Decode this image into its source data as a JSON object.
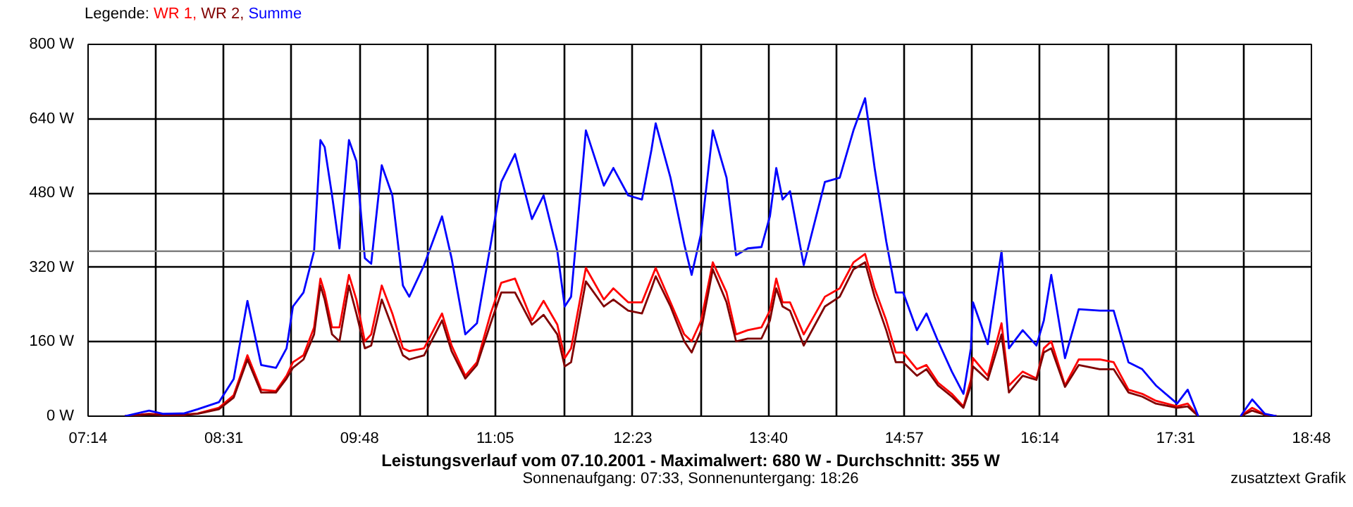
{
  "chart_data": {
    "type": "line",
    "title": "Leistungsverlauf vom 07.10.2001 - Maximalwert: 680 W - Durchschnitt: 355 W",
    "subtitle": "Sonnenaufgang: 07:33, Sonnenuntergang: 18:26",
    "legend_title": "Legende:",
    "annotations": [
      "zusatztext Grafik"
    ],
    "x": [
      7.58,
      7.81,
      7.94,
      8.14,
      8.27,
      8.47,
      8.61,
      8.74,
      8.87,
      9.01,
      9.11,
      9.17,
      9.27,
      9.37,
      9.43,
      9.47,
      9.54,
      9.61,
      9.7,
      9.77,
      9.85,
      9.91,
      10.01,
      10.11,
      10.21,
      10.27,
      10.41,
      10.58,
      10.67,
      10.8,
      10.91,
      11.04,
      11.14,
      11.27,
      11.43,
      11.54,
      11.67,
      11.74,
      11.8,
      11.94,
      12.11,
      12.2,
      12.34,
      12.47,
      12.56,
      12.6,
      12.74,
      12.87,
      12.94,
      13.03,
      13.14,
      13.27,
      13.36,
      13.47,
      13.6,
      13.68,
      13.74,
      13.8,
      13.87,
      14.0,
      14.2,
      14.34,
      14.47,
      14.58,
      14.67,
      14.78,
      14.87,
      14.94,
      15.07,
      15.16,
      15.27,
      15.4,
      15.51,
      15.58,
      15.6,
      15.74,
      15.87,
      15.94,
      16.07,
      16.2,
      16.27,
      16.34,
      16.47,
      16.6,
      16.8,
      16.93,
      17.07,
      17.2,
      17.33,
      17.53,
      17.63,
      17.73,
      17.93,
      18.13,
      18.24,
      18.36,
      18.47
    ],
    "series": [
      {
        "name": "WR 1,",
        "color": "#ff0000",
        "values": [
          0,
          5,
          3,
          3,
          6,
          18,
          45,
          131,
          57,
          54,
          87,
          116,
          131,
          191,
          296,
          266,
          191,
          191,
          304,
          251,
          161,
          176,
          281,
          221,
          146,
          140,
          146,
          221,
          152,
          87,
          116,
          221,
          287,
          296,
          206,
          248,
          197,
          125,
          146,
          319,
          251,
          275,
          245,
          245,
          296,
          319,
          245,
          176,
          161,
          206,
          331,
          266,
          176,
          185,
          191,
          227,
          296,
          245,
          245,
          176,
          257,
          275,
          331,
          349,
          275,
          206,
          137,
          137,
          101,
          110,
          72,
          48,
          21,
          78,
          125,
          87,
          200,
          66,
          96,
          81,
          146,
          161,
          66,
          122,
          122,
          116,
          57,
          48,
          33,
          21,
          27,
          0,
          null,
          0,
          18,
          3,
          0
        ]
      },
      {
        "name": "WR 2,",
        "color": "#800000",
        "values": [
          0,
          4,
          2,
          3,
          5,
          15,
          40,
          122,
          51,
          51,
          81,
          104,
          122,
          176,
          281,
          251,
          176,
          161,
          281,
          221,
          146,
          152,
          251,
          191,
          131,
          122,
          131,
          206,
          140,
          81,
          110,
          200,
          266,
          266,
          197,
          218,
          176,
          107,
          116,
          290,
          236,
          251,
          227,
          221,
          275,
          301,
          236,
          161,
          137,
          185,
          316,
          245,
          161,
          167,
          167,
          206,
          275,
          236,
          227,
          152,
          236,
          257,
          316,
          331,
          257,
          185,
          116,
          116,
          87,
          101,
          66,
          42,
          18,
          66,
          107,
          78,
          176,
          51,
          87,
          78,
          137,
          146,
          63,
          110,
          101,
          101,
          51,
          42,
          27,
          18,
          21,
          0,
          null,
          0,
          12,
          3,
          0
        ]
      },
      {
        "name": "Summe",
        "color": "#0000ff",
        "values": [
          0,
          12,
          5,
          6,
          15,
          30,
          80,
          248,
          110,
          104,
          146,
          236,
          266,
          355,
          594,
          579,
          475,
          361,
          594,
          549,
          340,
          328,
          540,
          475,
          281,
          257,
          325,
          430,
          340,
          176,
          200,
          370,
          504,
          564,
          424,
          475,
          355,
          236,
          257,
          615,
          496,
          534,
          475,
          466,
          573,
          630,
          513,
          370,
          304,
          394,
          615,
          513,
          346,
          361,
          364,
          430,
          534,
          466,
          484,
          325,
          504,
          513,
          615,
          684,
          534,
          376,
          266,
          266,
          185,
          221,
          161,
          96,
          48,
          146,
          245,
          155,
          355,
          146,
          185,
          152,
          206,
          304,
          125,
          230,
          227,
          227,
          116,
          101,
          66,
          27,
          57,
          0,
          null,
          0,
          36,
          5,
          0
        ]
      }
    ],
    "xlim": [
      7.2333,
      18.8
    ],
    "xticks": [
      {
        "value": 7.2333,
        "label": "07:14"
      },
      {
        "value": 7.875,
        "label": null
      },
      {
        "value": 8.5167,
        "label": "08:31"
      },
      {
        "value": 9.158,
        "label": null
      },
      {
        "value": 9.8,
        "label": "09:48"
      },
      {
        "value": 10.442,
        "label": null
      },
      {
        "value": 11.0833,
        "label": "11:05"
      },
      {
        "value": 11.733,
        "label": null
      },
      {
        "value": 12.3833,
        "label": "12:23"
      },
      {
        "value": 13.025,
        "label": null
      },
      {
        "value": 13.6667,
        "label": "13:40"
      },
      {
        "value": 14.308,
        "label": null
      },
      {
        "value": 14.95,
        "label": "14:57"
      },
      {
        "value": 15.592,
        "label": null
      },
      {
        "value": 16.2333,
        "label": "16:14"
      },
      {
        "value": 16.875,
        "label": null
      },
      {
        "value": 17.5167,
        "label": "17:31"
      },
      {
        "value": 18.158,
        "label": null
      },
      {
        "value": 18.8,
        "label": "18:48"
      }
    ],
    "ylim": [
      0,
      800
    ],
    "yticks": [
      {
        "value": 0,
        "label": "0 W"
      },
      {
        "value": 160,
        "label": "160 W"
      },
      {
        "value": 320,
        "label": "320 W"
      },
      {
        "value": 480,
        "label": "480 W"
      },
      {
        "value": 640,
        "label": "640 W"
      },
      {
        "value": 800,
        "label": "800 W"
      }
    ],
    "ref_lines": [
      {
        "axis": "y",
        "value": 355,
        "label": null,
        "color": "#808080"
      }
    ],
    "grid": true,
    "line_style": "solid",
    "marker": "none"
  }
}
